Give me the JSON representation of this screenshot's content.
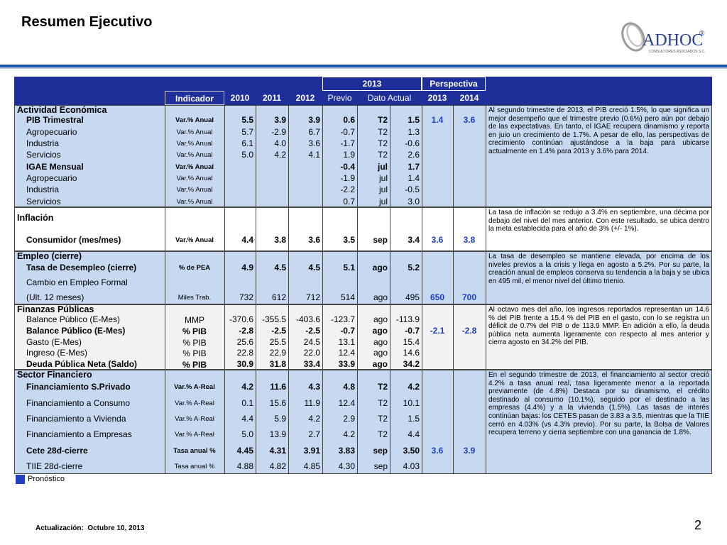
{
  "header": {
    "title": "Resumen Ejecutivo",
    "logo": "ADHOC",
    "logo_mark": "®",
    "logo_sub": "CONSULTORES ASOCIADOS S.C."
  },
  "table": {
    "group_headers": [
      "2013",
      "Perspectiva"
    ],
    "columns": [
      "Indicador",
      "2010",
      "2011",
      "2012",
      "Previo",
      "Dato Actual",
      "2013",
      "2014"
    ],
    "sections": [
      {
        "name": "Actividad Económica",
        "comment": "Al segundo trimestre de 2013, el PIB creció 1.5%, lo que significa un mejor desempeño que el trimestre previo (0.6%) pero aún por debajo de las expectativas. En tanto, el IGAE recupera dinamismo y reporta en juio un crecimiento de 1.7%. A pesar de ello, las perspectivas de crecimiento continúan ajustándose a la baja para ubicarse actualmente en 1.4% para 2013 y 3.6% para 2014.",
        "rows": [
          {
            "label": "PIB Trimestral",
            "bold": true,
            "unit": "Var.% Anual",
            "values": [
              "5.5",
              "3.9",
              "3.9",
              "0.6",
              "T2",
              "1.5"
            ],
            "forecast": [
              "1.4",
              "3.6"
            ]
          },
          {
            "label": "Agropecuario",
            "unit": "Var.% Anual",
            "values": [
              "5.7",
              "-2.9",
              "6.7",
              "-0.7",
              "T2",
              "1.3"
            ]
          },
          {
            "label": "Industria",
            "unit": "Var.% Anual",
            "values": [
              "6.1",
              "4.0",
              "3.6",
              "-1.7",
              "T2",
              "-0.6"
            ]
          },
          {
            "label": "Servicios",
            "unit": "Var.% Anual",
            "values": [
              "5.0",
              "4.2",
              "4.1",
              "1.9",
              "T2",
              "2.6"
            ]
          },
          {
            "label": "IGAE Mensual",
            "bold": true,
            "unit": "Var.% Anual",
            "values": [
              null,
              null,
              null,
              "-0.4",
              "jul",
              "1.7"
            ]
          },
          {
            "label": "Agropecuario",
            "unit": "Var.% Anual",
            "values": [
              null,
              null,
              null,
              "-1.9",
              "jul",
              "1.4"
            ]
          },
          {
            "label": "Industria",
            "unit": "Var.% Anual",
            "values": [
              null,
              null,
              null,
              "-2.2",
              "jul",
              "-0.5"
            ]
          },
          {
            "label": "Servicios",
            "unit": "Var.% Anual",
            "values": [
              null,
              null,
              null,
              "0.7",
              "jul",
              "3.0"
            ]
          }
        ]
      },
      {
        "name": "Inflación",
        "comment": "La tasa de inflación se redujo a 3.4% en septiembre, una décima por debajo del nivel del mes anterior. Con este resultado, se ubica dentro la meta establecida para el año de 3% (+/- 1%).",
        "rows": [
          {
            "label": "Consumidor (mes/mes)",
            "bold": true,
            "unit": "Var.% Anual",
            "values": [
              "4.4",
              "3.8",
              "3.6",
              "3.5",
              "sep",
              "3.4"
            ],
            "forecast": [
              "3.6",
              "3.8"
            ]
          }
        ]
      },
      {
        "name": "Empleo (cierre)",
        "comment": "La tasa de desempleo se mantiene elevada, por encima de los niveles previos a la crisis y llega en agosto a 5.2%. Por su parte, la creación anual de empleos conserva su tendencia a la baja y se ubica en 495 mil, el menor nivel del último trienio.",
        "rows": [
          {
            "label": "Tasa de Desempleo (cierre)",
            "bold": true,
            "unit": "% de PEA",
            "values": [
              "4.9",
              "4.5",
              "4.5",
              "5.1",
              "ago",
              "5.2"
            ]
          },
          {
            "label": "Cambio en Empleo Formal"
          },
          {
            "label": "(Ult. 12 meses)",
            "unit": "Miles Trab.",
            "values": [
              "732",
              "612",
              "712",
              "514",
              "ago",
              "495"
            ],
            "forecast": [
              "650",
              "700"
            ]
          }
        ]
      },
      {
        "name": "Finanzas Públicas",
        "comment": "Al octavo mes del año, los ingresos reportados representan un 14.6 % del PIB frente a 15.4 % del PIB en el gasto, con lo se registra un déficit de 0.7% del PIB o de 113.9 MMP. En adición a ello, la deuda pública neta aumenta ligeramente con respecto al mes anterior y cierra agosto en 34.2% del PIB.",
        "rows": [
          {
            "label": "Balance Público (E-Mes)",
            "unit": "MMP",
            "values": [
              "-370.6",
              "-355.5",
              "-403.6",
              "-123.7",
              "ago",
              "-113.9"
            ]
          },
          {
            "label": "Balance Público (E-Mes)",
            "bold": true,
            "unit": "% PIB",
            "values": [
              "-2.8",
              "-2.5",
              "-2.5",
              "-0.7",
              "ago",
              "-0.7"
            ],
            "forecast": [
              "-2.1",
              "-2.8"
            ]
          },
          {
            "label": "Gasto (E-Mes)",
            "unit": "% PIB",
            "values": [
              "25.6",
              "25.5",
              "24.5",
              "13.1",
              "ago",
              "15.4"
            ]
          },
          {
            "label": "Ingreso (E-Mes)",
            "unit": "% PIB",
            "values": [
              "22.8",
              "22.9",
              "22.0",
              "12.4",
              "ago",
              "14.6"
            ]
          },
          {
            "label": "Deuda Pública Neta (Saldo)",
            "bold": true,
            "unit": "% PIB",
            "values": [
              "30.9",
              "31.8",
              "33.4",
              "33.9",
              "ago",
              "34.2"
            ]
          }
        ]
      },
      {
        "name": "Sector Financiero",
        "comment": "En el segundo trimestre de 2013, el financiamiento al sector creció 4.2% a tasa anual real, tasa ligeramente menor a la reportada previamente (de 4.8%) Destaca por su dinamismo, el crédito destinado al consumo (10.1%), seguido por el destinado a las empresas (4.4%) y a la vivienda (1.5%). Las tasas de interés continúan bajas: los CETES pasan de 3.83 a 3.5, mientras que la TIIE cerró en 4.03% (vs 4.3% previo). Por su parte, la Bolsa de Valores recupera terreno y cierra septiembre con una ganancia de 1.8%.",
        "rows": [
          {
            "label": "Financiamiento S.Privado",
            "bold": true,
            "unit": "Var.% A-Real",
            "values": [
              "4.2",
              "11.6",
              "4.3",
              "4.8",
              "T2",
              "4.2"
            ]
          },
          {
            "label": "Financiamiento a Consumo",
            "unit": "Var.% A-Real",
            "values": [
              "0.1",
              "15.6",
              "11.9",
              "12.4",
              "T2",
              "10.1"
            ]
          },
          {
            "label": "Financiamiento a Vivienda",
            "unit": "Var.% A-Real",
            "values": [
              "4.4",
              "5.9",
              "4.2",
              "2.9",
              "T2",
              "1.5"
            ]
          },
          {
            "label": "Financiamiento a Empresas",
            "unit": "Var.% A-Real",
            "values": [
              "5.0",
              "13.9",
              "2.7",
              "4.2",
              "T2",
              "4.4"
            ]
          },
          {
            "label": "Cete 28d-cierre",
            "bold": true,
            "unit": "Tasa anual %",
            "values": [
              "4.45",
              "4.31",
              "3.91",
              "3.83",
              "sep",
              "3.50"
            ],
            "forecast": [
              "3.6",
              "3.9"
            ]
          },
          {
            "label": "TIIE 28d-cierre",
            "unit": "Tasa anual %",
            "values": [
              "4.88",
              "4.82",
              "4.85",
              "4.30",
              "sep",
              "4.03"
            ]
          }
        ]
      }
    ]
  },
  "legend": "Pronóstico",
  "footer": {
    "updated": "Actualización:  Octubre 10, 2013",
    "page": "2"
  }
}
